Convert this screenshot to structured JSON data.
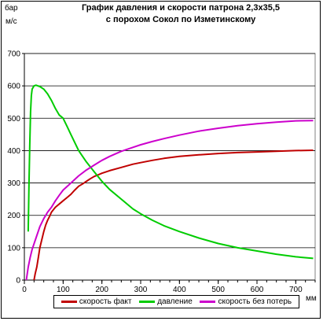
{
  "chart_data": {
    "type": "line",
    "title_line1": "График давления и скорости патрона 2,3х35,5",
    "title_line2": "с порохом Сокол по Изметинскому",
    "y_unit_top": "бар",
    "y_unit_bottom": "м/с",
    "x_unit": "мм",
    "xlim": [
      0,
      750
    ],
    "ylim": [
      0,
      700
    ],
    "x_ticks": [
      0,
      100,
      200,
      300,
      400,
      500,
      600,
      700
    ],
    "y_ticks": [
      0,
      100,
      200,
      300,
      400,
      500,
      600,
      700
    ],
    "grid": true,
    "legend_position": "bottom",
    "series": [
      {
        "name": "скорость факт",
        "color": "#c00000",
        "points": [
          [
            25,
            0
          ],
          [
            28,
            20
          ],
          [
            32,
            40
          ],
          [
            36,
            70
          ],
          [
            40,
            100
          ],
          [
            45,
            125
          ],
          [
            50,
            150
          ],
          [
            55,
            170
          ],
          [
            60,
            185
          ],
          [
            65,
            197
          ],
          [
            70,
            210
          ],
          [
            80,
            225
          ],
          [
            90,
            235
          ],
          [
            100,
            245
          ],
          [
            110,
            255
          ],
          [
            120,
            265
          ],
          [
            130,
            278
          ],
          [
            140,
            290
          ],
          [
            150,
            297
          ],
          [
            160,
            305
          ],
          [
            170,
            313
          ],
          [
            180,
            320
          ],
          [
            200,
            330
          ],
          [
            220,
            338
          ],
          [
            250,
            348
          ],
          [
            280,
            358
          ],
          [
            300,
            363
          ],
          [
            330,
            370
          ],
          [
            360,
            376
          ],
          [
            400,
            382
          ],
          [
            450,
            387
          ],
          [
            500,
            391
          ],
          [
            550,
            394
          ],
          [
            600,
            396
          ],
          [
            650,
            398
          ],
          [
            700,
            400
          ],
          [
            745,
            401
          ]
        ]
      },
      {
        "name": "давление",
        "color": "#00cc00",
        "points": [
          [
            10,
            150
          ],
          [
            12,
            300
          ],
          [
            14,
            420
          ],
          [
            16,
            520
          ],
          [
            18,
            570
          ],
          [
            20,
            590
          ],
          [
            25,
            600
          ],
          [
            30,
            602
          ],
          [
            40,
            598
          ],
          [
            50,
            590
          ],
          [
            60,
            575
          ],
          [
            70,
            555
          ],
          [
            80,
            530
          ],
          [
            90,
            510
          ],
          [
            100,
            500
          ],
          [
            110,
            475
          ],
          [
            120,
            450
          ],
          [
            140,
            400
          ],
          [
            160,
            365
          ],
          [
            180,
            335
          ],
          [
            200,
            305
          ],
          [
            220,
            280
          ],
          [
            250,
            250
          ],
          [
            280,
            220
          ],
          [
            300,
            205
          ],
          [
            330,
            185
          ],
          [
            360,
            168
          ],
          [
            400,
            150
          ],
          [
            450,
            130
          ],
          [
            500,
            113
          ],
          [
            550,
            100
          ],
          [
            600,
            90
          ],
          [
            650,
            80
          ],
          [
            700,
            72
          ],
          [
            745,
            67
          ]
        ]
      },
      {
        "name": "скорость без потерь",
        "color": "#cc00cc",
        "points": [
          [
            5,
            0
          ],
          [
            10,
            40
          ],
          [
            15,
            70
          ],
          [
            20,
            95
          ],
          [
            30,
            130
          ],
          [
            40,
            165
          ],
          [
            50,
            190
          ],
          [
            60,
            210
          ],
          [
            70,
            225
          ],
          [
            80,
            245
          ],
          [
            90,
            262
          ],
          [
            100,
            278
          ],
          [
            120,
            300
          ],
          [
            140,
            322
          ],
          [
            160,
            340
          ],
          [
            180,
            355
          ],
          [
            200,
            370
          ],
          [
            220,
            382
          ],
          [
            250,
            398
          ],
          [
            280,
            410
          ],
          [
            300,
            418
          ],
          [
            330,
            428
          ],
          [
            360,
            437
          ],
          [
            400,
            448
          ],
          [
            450,
            460
          ],
          [
            500,
            469
          ],
          [
            550,
            477
          ],
          [
            600,
            483
          ],
          [
            650,
            488
          ],
          [
            700,
            492
          ],
          [
            745,
            493
          ]
        ]
      }
    ]
  }
}
